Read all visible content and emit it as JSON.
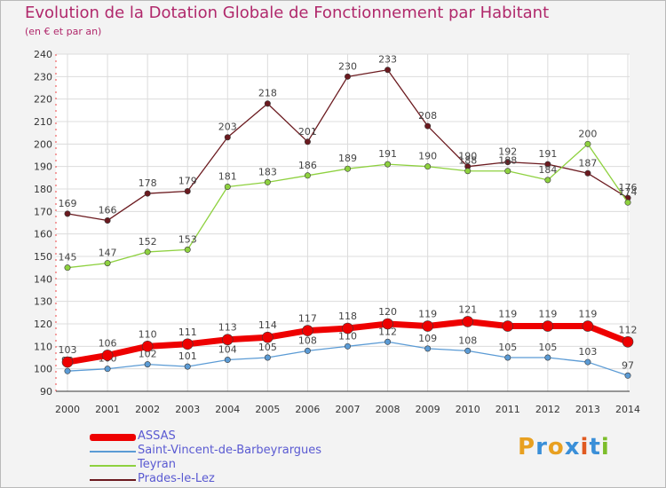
{
  "title": "Evolution de la Dotation Globale de Fonctionnement par Habitant",
  "subtitle": "(en € et par an)",
  "logo": {
    "letters": [
      "P",
      "r",
      "o",
      "x",
      "i",
      "t",
      "i"
    ],
    "colors": [
      "#e8a020",
      "#3a8fd8",
      "#e8a020",
      "#3a8fd8",
      "#e05a20",
      "#3a8fd8",
      "#7cbd2a"
    ]
  },
  "chart_data": {
    "type": "line",
    "x": [
      "2000",
      "2001",
      "2002",
      "2003",
      "2004",
      "2005",
      "2006",
      "2007",
      "2008",
      "2009",
      "2010",
      "2011",
      "2012",
      "2013",
      "2014"
    ],
    "ylim": [
      90,
      240
    ],
    "yticks": [
      90,
      100,
      110,
      120,
      130,
      140,
      150,
      160,
      170,
      180,
      190,
      200,
      210,
      220,
      230,
      240
    ],
    "grid": true,
    "legend_position": "bottom-left",
    "series": [
      {
        "name": "Prades-le-Lez",
        "color": "#6b1a1f",
        "width": 1.3,
        "marker": 3.2,
        "values": [
          169,
          166,
          178,
          179,
          203,
          218,
          201,
          230,
          233,
          208,
          190,
          192,
          191,
          187,
          176
        ],
        "labels": [
          "169",
          "166",
          "178",
          "179",
          "203",
          "218",
          "201",
          "230",
          "233",
          "208",
          "190",
          "192",
          "191",
          "187",
          "176"
        ]
      },
      {
        "name": "Teyran",
        "color": "#8ed13f",
        "width": 1.3,
        "marker": 3.2,
        "values": [
          145,
          147,
          152,
          153,
          181,
          183,
          186,
          189,
          191,
          190,
          188,
          188,
          184,
          200,
          174
        ],
        "labels": [
          "145",
          "147",
          "152",
          "153",
          "181",
          "183",
          "186",
          "189",
          "191",
          "190",
          "188",
          "188",
          "184",
          "200",
          "174"
        ]
      },
      {
        "name": "Saint-Vincent-de-Barbeyrargues",
        "color": "#5b9bd5",
        "width": 1.3,
        "marker": 3.2,
        "values": [
          99,
          100,
          102,
          101,
          104,
          105,
          108,
          110,
          112,
          109,
          108,
          105,
          105,
          103,
          97
        ],
        "labels": [
          "99",
          "100",
          "102",
          "101",
          "104",
          "105",
          "108",
          "110",
          "112",
          "109",
          "108",
          "105",
          "105",
          "103",
          "97"
        ]
      },
      {
        "name": "ASSAS",
        "color": "#ee0000",
        "width": 7,
        "marker": 6,
        "values": [
          103,
          106,
          110,
          111,
          113,
          114,
          117,
          118,
          120,
          119,
          121,
          119,
          119,
          119,
          112
        ],
        "labels": [
          "103",
          "106",
          "110",
          "111",
          "113",
          "114",
          "117",
          "118",
          "120",
          "119",
          "121",
          "119",
          "119",
          "119",
          "112"
        ]
      }
    ]
  },
  "legend": [
    {
      "name": "ASSAS",
      "color": "#ee0000",
      "thick": 8
    },
    {
      "name": "Saint-Vincent-de-Barbeyrargues",
      "color": "#5b9bd5",
      "thick": 2
    },
    {
      "name": "Teyran",
      "color": "#8ed13f",
      "thick": 2
    },
    {
      "name": "Prades-le-Lez",
      "color": "#6b1a1f",
      "thick": 2
    }
  ]
}
